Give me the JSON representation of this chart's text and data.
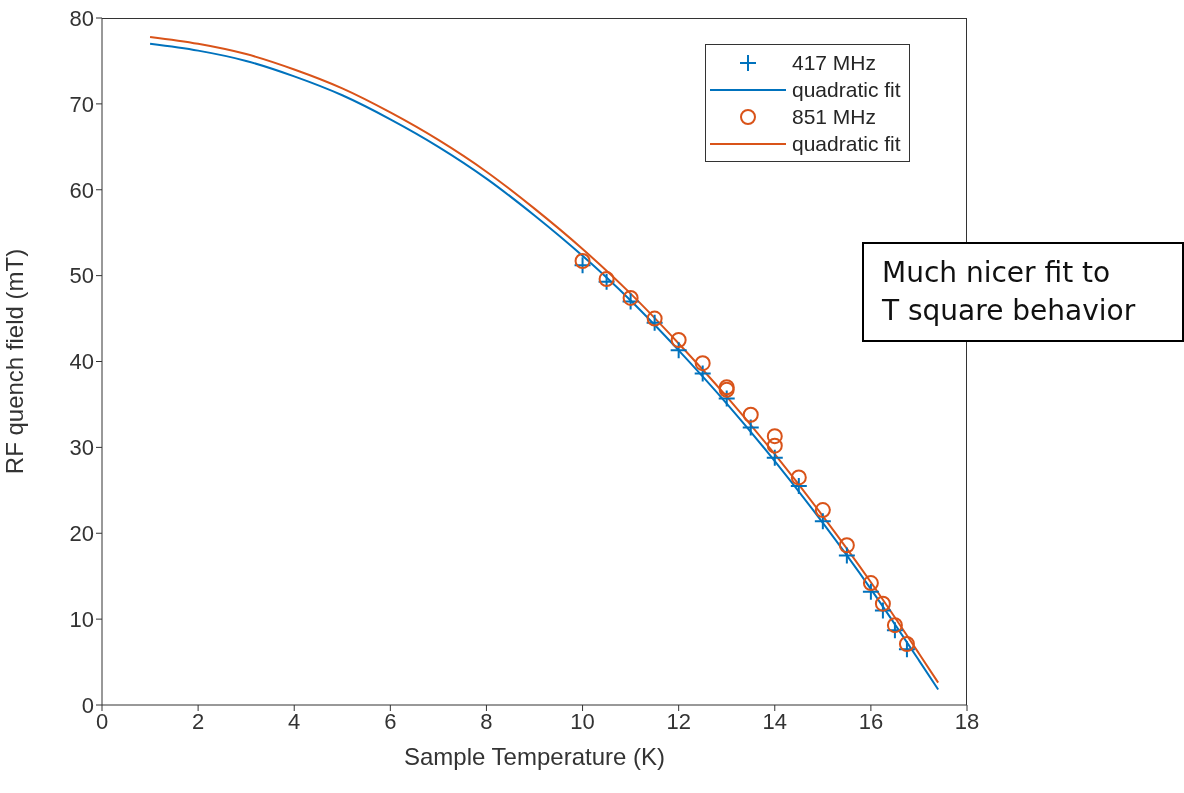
{
  "chart_data": {
    "type": "scatter",
    "xlabel": "Sample Temperature (K)",
    "ylabel": "RF quench field (mT)",
    "xlim": [
      0,
      18
    ],
    "xticks": [
      0,
      2,
      4,
      6,
      8,
      10,
      12,
      14,
      16,
      18
    ],
    "ylim": [
      0,
      80
    ],
    "yticks": [
      0,
      10,
      20,
      30,
      40,
      50,
      60,
      70,
      80
    ],
    "legend": "top right",
    "annotations": [
      "Much nicer fit to\nT square behavior"
    ],
    "series": [
      {
        "name": "417 MHz",
        "marker": "cross",
        "color": "#0072bd",
        "x": [
          10,
          10.5,
          11,
          11.5,
          12,
          12.5,
          13,
          13.5,
          14,
          14.5,
          15,
          15.5,
          16,
          16.25,
          16.5,
          16.75
        ],
        "values": [
          51.2,
          49.3,
          47,
          44.5,
          41.3,
          38.6,
          35.7,
          32.3,
          28.8,
          25.5,
          21.4,
          17.4,
          13.2,
          11,
          8.7,
          6.5
        ]
      },
      {
        "name": "quadratic fit",
        "type": "line",
        "marker": "none",
        "line_style": "solid",
        "color": "#0072bd",
        "x": [
          1,
          2,
          3,
          4,
          5,
          6,
          7,
          8,
          9,
          10,
          11,
          12,
          13,
          14,
          15,
          16,
          17,
          17.4
        ],
        "values": [
          77.0,
          76.2,
          75.0,
          73.2,
          71.0,
          68.2,
          65.0,
          61.3,
          57.0,
          52.3,
          47.1,
          41.3,
          35.1,
          28.4,
          21.2,
          13.5,
          5.2,
          1.8
        ]
      },
      {
        "name": "851 MHz",
        "marker": "circle",
        "color": "#d95319",
        "x": [
          10,
          10.5,
          11,
          11.5,
          12,
          12.5,
          13,
          13,
          13.5,
          14,
          14,
          14.5,
          15,
          15.5,
          16,
          16.25,
          16.5,
          16.75
        ],
        "values": [
          51.7,
          49.6,
          47.4,
          45,
          42.5,
          39.8,
          37,
          36.7,
          33.8,
          31.3,
          30.2,
          26.5,
          22.7,
          18.6,
          14.2,
          11.8,
          9.3,
          7.1
        ]
      },
      {
        "name": "quadratic fit",
        "type": "line",
        "marker": "none",
        "line_style": "solid",
        "color": "#d95319",
        "x": [
          1,
          2,
          3,
          4,
          5,
          6,
          7,
          8,
          9,
          10,
          11,
          12,
          13,
          14,
          15,
          16,
          17,
          17.4
        ],
        "values": [
          77.8,
          77.0,
          75.8,
          74.0,
          71.8,
          69.0,
          65.8,
          62.1,
          57.8,
          53.1,
          47.9,
          42.1,
          35.9,
          29.2,
          22.0,
          14.3,
          6.0,
          2.6
        ]
      }
    ]
  }
}
